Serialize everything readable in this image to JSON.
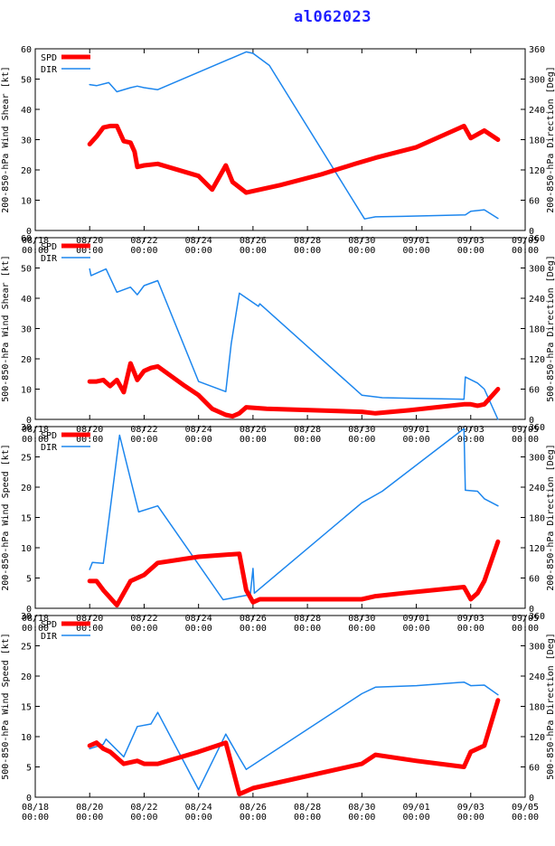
{
  "page_title": "al062023",
  "colors": {
    "spd": "#ff0000",
    "dir": "#1c86ee",
    "axis": "#000000",
    "title": "#1f1fff"
  },
  "legend": {
    "spd_label": "SPD",
    "dir_label": "DIR"
  },
  "x_ticks": [
    {
      "day": 0,
      "date": "08/18",
      "time": "00:00"
    },
    {
      "day": 2,
      "date": "08/20",
      "time": "00:00"
    },
    {
      "day": 4,
      "date": "08/22",
      "time": "00:00"
    },
    {
      "day": 6,
      "date": "08/24",
      "time": "00:00"
    },
    {
      "day": 8,
      "date": "08/26",
      "time": "00:00"
    },
    {
      "day": 10,
      "date": "08/28",
      "time": "00:00"
    },
    {
      "day": 12,
      "date": "08/30",
      "time": "00:00"
    },
    {
      "day": 14,
      "date": "09/01",
      "time": "00:00"
    },
    {
      "day": 16,
      "date": "09/03",
      "time": "00:00"
    },
    {
      "day": 18,
      "date": "09/05",
      "time": "00:00"
    }
  ],
  "chart_data": [
    {
      "type": "line",
      "ylabel_left": "200-850-hPa Wind Shear [kt]",
      "ylabel_right": "200-850-hPa Direction [Deg]",
      "xlim": [
        0,
        18
      ],
      "ylim_left": [
        0,
        60
      ],
      "yticks_left": [
        0,
        10,
        20,
        30,
        40,
        50,
        60
      ],
      "ylim_right": [
        0,
        360
      ],
      "yticks_right": [
        0,
        60,
        120,
        180,
        240,
        300,
        360
      ],
      "series": [
        {
          "name": "SPD",
          "axis": "left",
          "x": [
            2.0,
            2.25,
            2.5,
            2.75,
            3.0,
            3.25,
            3.5,
            3.65,
            3.75,
            4.0,
            4.5,
            6.0,
            6.5,
            6.75,
            7.0,
            7.25,
            7.75,
            9.0,
            10.5,
            11.75,
            12.5,
            14.0,
            15.75,
            16.0,
            16.5,
            17.0
          ],
          "y": [
            28.5,
            31,
            34,
            34.5,
            34.5,
            29.5,
            29,
            26,
            21,
            21.5,
            22,
            18,
            13.5,
            17.5,
            21.5,
            16,
            12.5,
            15,
            18.5,
            22,
            24,
            27.5,
            34.5,
            30.5,
            33,
            30
          ]
        },
        {
          "name": "DIR",
          "axis": "right",
          "x": [
            2.0,
            2.25,
            2.7,
            3.0,
            3.5,
            3.75,
            4.0,
            4.5,
            7.75,
            8.0,
            8.6,
            12.1,
            12.5,
            13.5,
            15.8,
            16.0,
            16.5,
            17.0
          ],
          "y": [
            289,
            287,
            293,
            275,
            283,
            286,
            283,
            279,
            354,
            351,
            327,
            23,
            27,
            28,
            31,
            38,
            41,
            24
          ]
        }
      ]
    },
    {
      "type": "line",
      "ylabel_left": "500-850-hPa Wind Shear [kt]",
      "ylabel_right": "500-850-hPa Direction [Deg]",
      "xlim": [
        0,
        18
      ],
      "ylim_left": [
        0,
        60
      ],
      "yticks_left": [
        0,
        10,
        20,
        30,
        40,
        50,
        60
      ],
      "ylim_right": [
        0,
        360
      ],
      "yticks_right": [
        0,
        60,
        120,
        180,
        240,
        300,
        360
      ],
      "series": [
        {
          "name": "SPD",
          "axis": "left",
          "x": [
            2.0,
            2.25,
            2.5,
            2.75,
            3.0,
            3.25,
            3.5,
            3.75,
            4.0,
            4.25,
            4.5,
            5.5,
            6.0,
            6.5,
            7.0,
            7.25,
            7.5,
            7.75,
            8.5,
            12.0,
            12.5,
            13.75,
            15.75,
            16.0,
            16.25,
            16.5,
            17.0
          ],
          "y": [
            12.5,
            12.5,
            13,
            11,
            13,
            9,
            18.5,
            13,
            16,
            17,
            17.5,
            11,
            8,
            3.5,
            1.5,
            1,
            2,
            4,
            3.5,
            2.5,
            2,
            3,
            5,
            5,
            4.5,
            5,
            10
          ]
        },
        {
          "name": "DIR",
          "axis": "right",
          "x": [
            2.0,
            2.05,
            2.6,
            3.0,
            3.5,
            3.75,
            4.0,
            4.5,
            6.0,
            7.0,
            7.2,
            7.5,
            8.2,
            8.25,
            12.0,
            12.75,
            13.75,
            15.75,
            15.8,
            16.25,
            16.5,
            17.0
          ],
          "y": [
            298,
            285,
            298,
            252,
            262,
            247,
            265,
            275,
            75,
            55,
            150,
            250,
            224,
            229,
            48,
            43,
            42,
            40,
            84,
            72,
            60,
            0
          ]
        }
      ]
    },
    {
      "type": "line",
      "ylabel_left": "200-850-hPa Wind Speed [kt]",
      "ylabel_right": "200-850-hPa Direction [Deg]",
      "xlim": [
        0,
        18
      ],
      "ylim_left": [
        0,
        30
      ],
      "yticks_left": [
        0,
        5,
        10,
        15,
        20,
        25,
        30
      ],
      "ylim_right": [
        0,
        360
      ],
      "yticks_right": [
        0,
        60,
        120,
        180,
        240,
        300,
        360
      ],
      "series": [
        {
          "name": "SPD",
          "axis": "left",
          "x": [
            2.0,
            2.25,
            2.5,
            3.0,
            3.5,
            3.75,
            4.0,
            4.5,
            6.0,
            7.5,
            7.75,
            8.0,
            8.25,
            12.0,
            12.5,
            13.5,
            15.75,
            16.0,
            16.25,
            16.5,
            17.0
          ],
          "y": [
            4.5,
            4.5,
            3,
            0.5,
            4.5,
            5,
            5.5,
            7.5,
            8.5,
            9,
            3,
            1,
            1.5,
            1.5,
            2,
            2.5,
            3.5,
            1.5,
            2.5,
            4.5,
            11
          ]
        },
        {
          "name": "DIR",
          "axis": "right",
          "x": [
            2.0,
            2.1,
            2.5,
            3.1,
            3.8,
            4.5,
            6.9,
            7.9,
            8.0,
            8.05,
            12.0,
            12.75,
            15.75,
            15.8,
            16.25,
            16.5,
            17.0
          ],
          "y": [
            77,
            91,
            89,
            343,
            191,
            203,
            17,
            27,
            79,
            30,
            209,
            232,
            356,
            234,
            232,
            217,
            203
          ]
        }
      ]
    },
    {
      "type": "line",
      "ylabel_left": "500-850-hPa Wind Speed [kt]",
      "ylabel_right": "500-850-hPa Direction [Deg]",
      "xlim": [
        0,
        18
      ],
      "ylim_left": [
        0,
        30
      ],
      "yticks_left": [
        0,
        5,
        10,
        15,
        20,
        25,
        30
      ],
      "ylim_right": [
        0,
        360
      ],
      "yticks_right": [
        0,
        60,
        120,
        180,
        240,
        300,
        360
      ],
      "series": [
        {
          "name": "SPD",
          "axis": "left",
          "x": [
            2.0,
            2.25,
            2.5,
            2.75,
            3.25,
            3.75,
            4.0,
            4.5,
            6.0,
            7.0,
            7.5,
            7.75,
            8.0,
            12.0,
            12.5,
            14.0,
            15.75,
            16.0,
            16.5,
            17.0
          ],
          "y": [
            8.5,
            9,
            8,
            7.5,
            5.5,
            6,
            5.5,
            5.5,
            7.5,
            9,
            0.5,
            1,
            1.5,
            5.5,
            7,
            6,
            5,
            7.5,
            8.5,
            16
          ]
        },
        {
          "name": "DIR",
          "axis": "right",
          "x": [
            2.0,
            2.5,
            2.6,
            3.25,
            3.75,
            4.25,
            4.5,
            6.0,
            7.0,
            7.5,
            7.75,
            12.0,
            12.5,
            14.0,
            15.75,
            16.0,
            16.5,
            17.0
          ],
          "y": [
            96,
            105,
            115,
            80,
            140,
            145,
            168,
            15,
            125,
            78,
            55,
            205,
            218,
            221,
            228,
            221,
            222,
            203
          ]
        }
      ]
    }
  ]
}
